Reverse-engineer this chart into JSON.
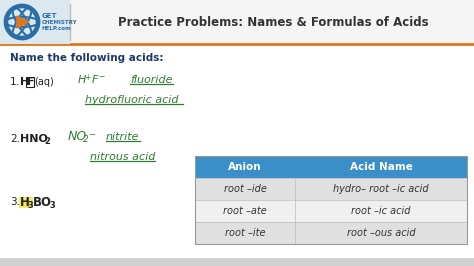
{
  "bg_color": "#e8e8e8",
  "header_bg": "#f5f5f5",
  "header_border_color": "#e07820",
  "header_title": "Practice Problems: Names & Formulas of Acids",
  "header_title_color": "#333333",
  "main_bg": "#ffffff",
  "main_instruction": "Name the following acids:",
  "main_instruction_color": "#1a3a6b",
  "green_color": "#2e7d32",
  "dark_text": "#222222",
  "table": {
    "header_bg": "#3a8fc8",
    "header_text_color": "#ffffff",
    "row_bg_1": "#e0e0e0",
    "row_bg_2": "#f0f0f0",
    "col1_header": "Anion",
    "col2_header": "Acid Name",
    "rows": [
      [
        "root –ide",
        "hydro– root –ic acid"
      ],
      [
        "root –ate",
        "root –ic acid"
      ],
      [
        "root –ite",
        "root –ous acid"
      ]
    ]
  }
}
